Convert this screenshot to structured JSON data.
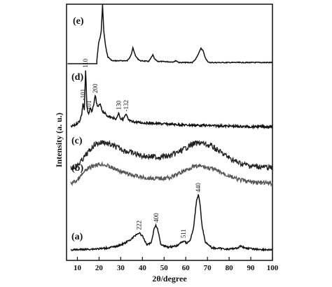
{
  "chart_data": {
    "type": "line",
    "xlabel": "2θ/degree",
    "ylabel": "Intensity (a. u.)",
    "xlim": [
      5,
      100
    ],
    "x_ticks": [
      10,
      20,
      30,
      40,
      50,
      60,
      70,
      80,
      90,
      100
    ],
    "grid": false,
    "legend": "none",
    "series": [
      {
        "name": "(e)",
        "points": [
          [
            19,
            0.06
          ],
          [
            19.8,
            0.35
          ],
          [
            20.5,
            0.45
          ],
          [
            21,
            0.55
          ],
          [
            21.6,
            1.0
          ],
          [
            22.2,
            0.55
          ],
          [
            23,
            0.3
          ],
          [
            24,
            0.12
          ],
          [
            26,
            0.05
          ],
          [
            33,
            0.05
          ],
          [
            34,
            0.1
          ],
          [
            35,
            0.17
          ],
          [
            35.6,
            0.27
          ],
          [
            36.2,
            0.2
          ],
          [
            37,
            0.12
          ],
          [
            38,
            0.08
          ],
          [
            39,
            0.05
          ],
          [
            43,
            0.04
          ],
          [
            44,
            0.1
          ],
          [
            44.8,
            0.15
          ],
          [
            45.6,
            0.08
          ],
          [
            47,
            0.04
          ],
          [
            54,
            0.03
          ],
          [
            55.5,
            0.05
          ],
          [
            57,
            0.02
          ],
          [
            63,
            0.02
          ],
          [
            64.5,
            0.07
          ],
          [
            66,
            0.18
          ],
          [
            67,
            0.26
          ],
          [
            68,
            0.22
          ],
          [
            69,
            0.1
          ],
          [
            70.5,
            0.02
          ]
        ]
      },
      {
        "name": "(d)",
        "points": [
          [
            7,
            0.0
          ],
          [
            9,
            0.03
          ],
          [
            11,
            0.1
          ],
          [
            12,
            0.22
          ],
          [
            12.6,
            0.42
          ],
          [
            13.2,
            0.3
          ],
          [
            13.8,
            1.0
          ],
          [
            14.4,
            0.35
          ],
          [
            15.2,
            0.22
          ],
          [
            16,
            0.34
          ],
          [
            16.8,
            0.26
          ],
          [
            17.6,
            0.42
          ],
          [
            18.3,
            0.55
          ],
          [
            19.2,
            0.35
          ],
          [
            20.5,
            0.4
          ],
          [
            21.5,
            0.28
          ],
          [
            22.5,
            0.25
          ],
          [
            23.5,
            0.2
          ],
          [
            26,
            0.16
          ],
          [
            28,
            0.14
          ],
          [
            29,
            0.25
          ],
          [
            30,
            0.14
          ],
          [
            31,
            0.13
          ],
          [
            32.5,
            0.22
          ],
          [
            33.5,
            0.12
          ],
          [
            35,
            0.09
          ],
          [
            40,
            0.07
          ],
          [
            50,
            0.05
          ],
          [
            60,
            0.03
          ],
          [
            70,
            0.02
          ],
          [
            80,
            0.01
          ],
          [
            90,
            0.0
          ],
          [
            100,
            0.0
          ]
        ]
      },
      {
        "name": "(c)",
        "points": [
          [
            7,
            0.0
          ],
          [
            10,
            0.05
          ],
          [
            14,
            0.3
          ],
          [
            18,
            0.55
          ],
          [
            22,
            0.6
          ],
          [
            27,
            0.5
          ],
          [
            33,
            0.38
          ],
          [
            40,
            0.28
          ],
          [
            47,
            0.25
          ],
          [
            53,
            0.28
          ],
          [
            58,
            0.4
          ],
          [
            63,
            0.55
          ],
          [
            67,
            0.58
          ],
          [
            72,
            0.5
          ],
          [
            78,
            0.3
          ],
          [
            84,
            0.12
          ],
          [
            90,
            0.05
          ],
          [
            100,
            0.0
          ]
        ]
      },
      {
        "name": "(b)",
        "points": [
          [
            7,
            0.0
          ],
          [
            10,
            0.12
          ],
          [
            14,
            0.5
          ],
          [
            18,
            0.7
          ],
          [
            22,
            0.72
          ],
          [
            27,
            0.55
          ],
          [
            33,
            0.36
          ],
          [
            40,
            0.22
          ],
          [
            47,
            0.18
          ],
          [
            53,
            0.22
          ],
          [
            58,
            0.42
          ],
          [
            63,
            0.62
          ],
          [
            67,
            0.65
          ],
          [
            72,
            0.55
          ],
          [
            78,
            0.35
          ],
          [
            84,
            0.15
          ],
          [
            90,
            0.05
          ],
          [
            100,
            0.0
          ]
        ]
      },
      {
        "name": "(a)",
        "points": [
          [
            7,
            0.0
          ],
          [
            15,
            0.01
          ],
          [
            22,
            0.02
          ],
          [
            28,
            0.05
          ],
          [
            32,
            0.1
          ],
          [
            35,
            0.16
          ],
          [
            37,
            0.22
          ],
          [
            38.5,
            0.25
          ],
          [
            40,
            0.2
          ],
          [
            42,
            0.08
          ],
          [
            44,
            0.1
          ],
          [
            45.5,
            0.32
          ],
          [
            46.3,
            0.36
          ],
          [
            47.2,
            0.28
          ],
          [
            48.5,
            0.08
          ],
          [
            52,
            0.04
          ],
          [
            56,
            0.06
          ],
          [
            58,
            0.11
          ],
          [
            59,
            0.13
          ],
          [
            60.5,
            0.1
          ],
          [
            62,
            0.14
          ],
          [
            63.5,
            0.3
          ],
          [
            65,
            0.72
          ],
          [
            65.8,
            0.8
          ],
          [
            66.5,
            0.7
          ],
          [
            67.5,
            0.35
          ],
          [
            69,
            0.12
          ],
          [
            72,
            0.03
          ],
          [
            80,
            0.01
          ],
          [
            84,
            0.03
          ],
          [
            85.5,
            0.06
          ],
          [
            87,
            0.03
          ],
          [
            92,
            0.01
          ],
          [
            100,
            0.0
          ]
        ]
      }
    ],
    "annotations": [
      {
        "text": "110",
        "x": 13.8,
        "series": "(d)"
      },
      {
        "text": "-101",
        "x": 12.6,
        "series": "(d)"
      },
      {
        "text": "101",
        "x": 15.4,
        "series": "(d)"
      },
      {
        "text": "200",
        "x": 18.3,
        "series": "(d)"
      },
      {
        "text": "130",
        "x": 29,
        "series": "(d)"
      },
      {
        "text": "-132",
        "x": 32.5,
        "series": "(d)"
      },
      {
        "text": "222",
        "x": 38.5,
        "series": "(a)"
      },
      {
        "text": "400",
        "x": 46.3,
        "series": "(a)"
      },
      {
        "text": "511",
        "x": 59,
        "series": "(a)"
      },
      {
        "text": "440",
        "x": 65.8,
        "series": "(a)"
      }
    ]
  }
}
